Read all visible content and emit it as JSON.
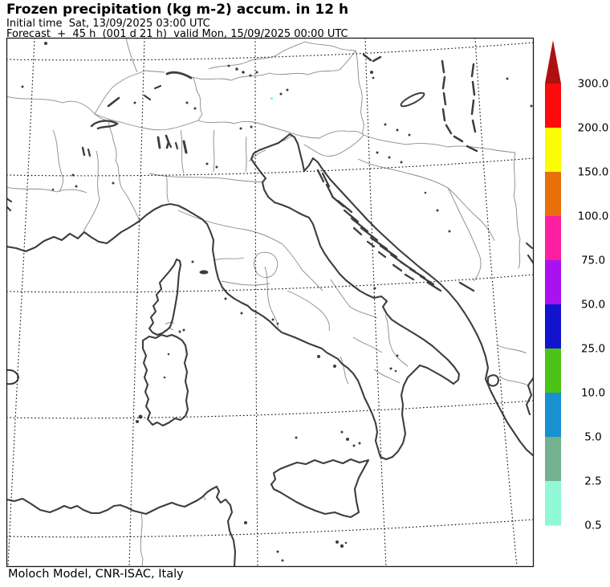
{
  "header": {
    "title": "Frozen precipitation (kg m-2) accum. in 12 h",
    "subtitle1": "Initial time  Sat, 13/09/2025 03:00 UTC",
    "subtitle2": "Forecast  +  45 h  (001 d 21 h)  valid Mon, 15/09/2025 00:00 UTC"
  },
  "footer": {
    "credit": "Moloch Model, CNR-ISAC, Italy"
  },
  "colorbar": {
    "unit": "kg m-2",
    "boundary_labels": [
      "300.0",
      "200.0",
      "150.0",
      "100.0",
      "75.0",
      "50.0",
      "25.0",
      "10.0",
      "5.0",
      "2.5",
      "0.5"
    ],
    "segment_colors_top_to_bottom": [
      "#fb0b0b",
      "#fdfd02",
      "#e7700a",
      "#fb1fa0",
      "#a912f0",
      "#1214cd",
      "#4cc417",
      "#1791cf",
      "#75b191",
      "#90f8d5"
    ],
    "overflow_arrow_color": "#ae0f10"
  },
  "map": {
    "background": "#ffffff",
    "coast_color": "#3d3d3d",
    "border_color": "#8a8a8a",
    "graticule_color": "#0a0a0a",
    "frame_color": "#1a1a1a",
    "precip_speck_color": "#7fffd4",
    "precip_speck_value_range": "0.5 - 2.5"
  }
}
